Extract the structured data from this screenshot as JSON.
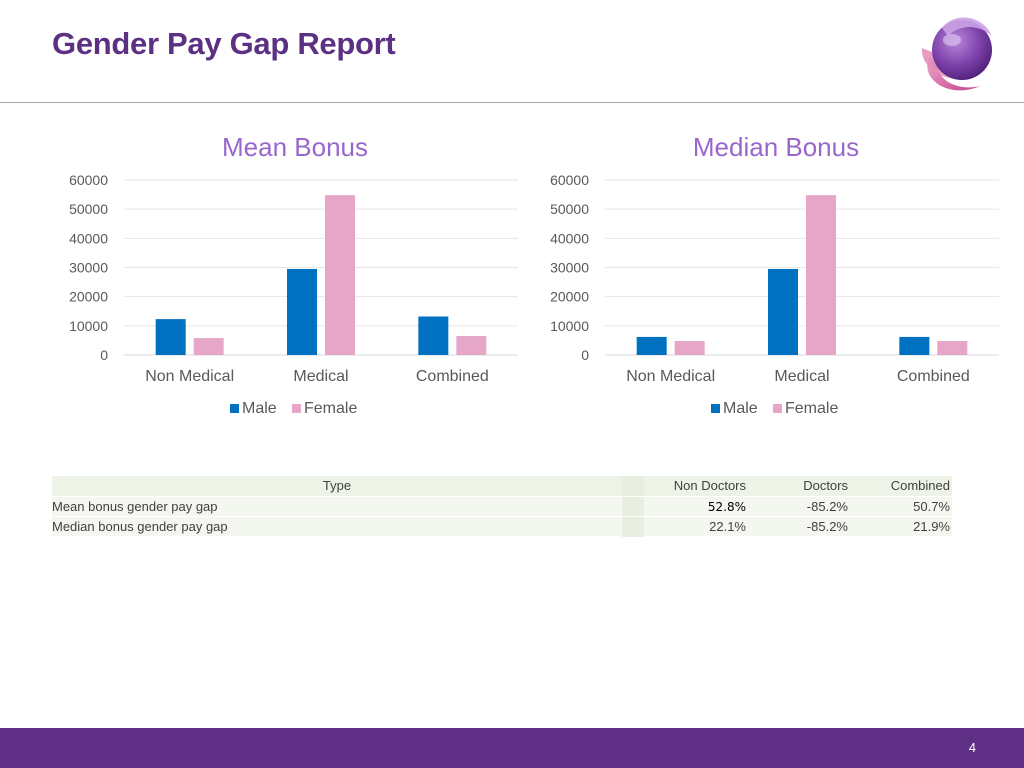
{
  "header": {
    "title": "Gender Pay Gap Report"
  },
  "colors": {
    "male": "#0070c0",
    "female": "#e6a6c8",
    "title_text": "#9966cc",
    "brand": "#5e2f84"
  },
  "chart_data": [
    {
      "type": "bar",
      "title": "Mean Bonus",
      "categories": [
        "Non Medical",
        "Medical",
        "Combined"
      ],
      "series": [
        {
          "name": "Male",
          "values": [
            12300,
            29500,
            13200
          ]
        },
        {
          "name": "Female",
          "values": [
            5800,
            54800,
            6500
          ]
        }
      ],
      "ylim": [
        0,
        60000
      ],
      "yticks": [
        0,
        10000,
        20000,
        30000,
        40000,
        50000,
        60000
      ],
      "grid": true,
      "legend": "bottom"
    },
    {
      "type": "bar",
      "title": "Median Bonus",
      "categories": [
        "Non Medical",
        "Medical",
        "Combined"
      ],
      "series": [
        {
          "name": "Male",
          "values": [
            6200,
            29500,
            6200
          ]
        },
        {
          "name": "Female",
          "values": [
            4800,
            54800,
            4800
          ]
        }
      ],
      "ylim": [
        0,
        60000
      ],
      "yticks": [
        0,
        10000,
        20000,
        30000,
        40000,
        50000,
        60000
      ],
      "grid": true,
      "legend": "bottom"
    }
  ],
  "table": {
    "headers": {
      "type": "Type",
      "non_doctors": "Non Doctors",
      "doctors": "Doctors",
      "combined": "Combined"
    },
    "rows": [
      {
        "type": "Mean bonus gender pay gap",
        "non_doctors": "52.8%",
        "doctors": "-85.2%",
        "combined": "50.7%"
      },
      {
        "type": "Median bonus gender pay gap",
        "non_doctors": "22.1%",
        "doctors": "-85.2%",
        "combined": "21.9%"
      }
    ]
  },
  "footer": {
    "page_number": "4"
  }
}
